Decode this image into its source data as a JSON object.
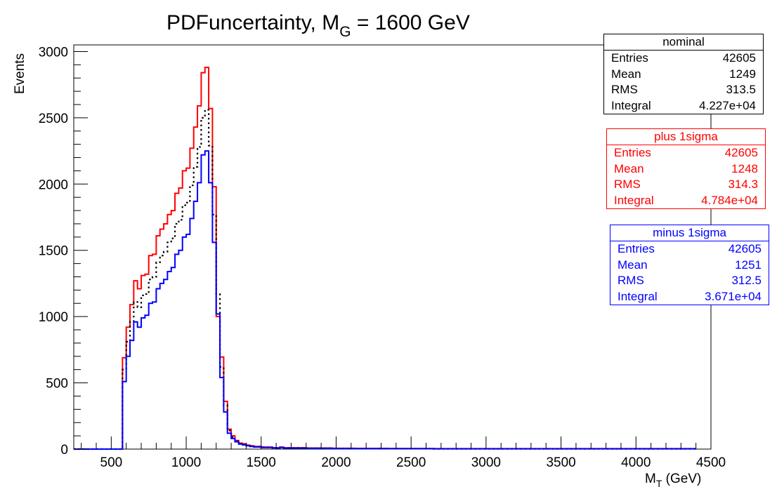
{
  "chart_data": {
    "type": "line",
    "title_main": "PDFuncertainty, M",
    "title_sub": "G",
    "title_tail": " = 1600 GeV",
    "xlabel_main": "M",
    "xlabel_sub": "T",
    "xlabel_tail": " (GeV)",
    "ylabel": "Events",
    "xlim": [
      250,
      4500
    ],
    "ylim": [
      0,
      3050
    ],
    "x_ticks": [
      "500",
      "1000",
      "1500",
      "2000",
      "2500",
      "3000",
      "3500",
      "4000",
      "4500"
    ],
    "y_ticks": [
      "0",
      "500",
      "1000",
      "1500",
      "2000",
      "2500",
      "3000"
    ],
    "bin_edges_start": 250,
    "bin_width": 25,
    "series": [
      {
        "name": "plus 1sigma",
        "color": "#ff0000",
        "style": "solid",
        "values": [
          0,
          0,
          0,
          0,
          0,
          0,
          0,
          0,
          0,
          0,
          0,
          0,
          0,
          690,
          920,
          1090,
          1270,
          1210,
          1310,
          1320,
          1460,
          1470,
          1610,
          1660,
          1700,
          1770,
          1800,
          1930,
          1970,
          2100,
          2120,
          2270,
          2430,
          2590,
          2840,
          2880,
          2570,
          1980,
          1000,
          695,
          360,
          150,
          100,
          65,
          45,
          40,
          30,
          25,
          20,
          20,
          15,
          15,
          15,
          10,
          10,
          15,
          10,
          10,
          10,
          10,
          10,
          10,
          8,
          8,
          8,
          8,
          8,
          8,
          8,
          6,
          6,
          6,
          6,
          6,
          6,
          5,
          5,
          5,
          5,
          5,
          5,
          5,
          5,
          5,
          4,
          4,
          4,
          4,
          4,
          4,
          4,
          4,
          4,
          4,
          4,
          4,
          3,
          3,
          3,
          3,
          3,
          3,
          3,
          3,
          3,
          3,
          3,
          3,
          3,
          3,
          3,
          3,
          3,
          3,
          3,
          3,
          3,
          3,
          3,
          3,
          3,
          3,
          3,
          3,
          3,
          3,
          3,
          3,
          3,
          3,
          3,
          3,
          3,
          3,
          3,
          3,
          3,
          3,
          3,
          3,
          3,
          3,
          3,
          3,
          3,
          3,
          3,
          3,
          3,
          3,
          3,
          3,
          3,
          3,
          3,
          3,
          3,
          3,
          3,
          3,
          3,
          3,
          3,
          3,
          3,
          3
        ]
      },
      {
        "name": "nominal",
        "color": "#000000",
        "style": "dotted",
        "values": [
          0,
          0,
          0,
          0,
          0,
          0,
          0,
          0,
          0,
          0,
          0,
          0,
          0,
          600,
          810,
          960,
          1110,
          1070,
          1160,
          1170,
          1280,
          1300,
          1410,
          1460,
          1490,
          1560,
          1590,
          1700,
          1730,
          1840,
          1860,
          1990,
          2130,
          2280,
          2500,
          2560,
          2290,
          1770,
          1170,
          620,
          330,
          140,
          90,
          60,
          42,
          35,
          28,
          22,
          18,
          18,
          14,
          13,
          13,
          10,
          9,
          13,
          9,
          9,
          9,
          9,
          9,
          9,
          7,
          7,
          7,
          7,
          7,
          7,
          7,
          5,
          5,
          5,
          5,
          5,
          5,
          4,
          4,
          4,
          4,
          4,
          4,
          4,
          4,
          4,
          3,
          3,
          3,
          3,
          3,
          3,
          3,
          3,
          3,
          3,
          3,
          3,
          2,
          2,
          2,
          2,
          2,
          2,
          2,
          2,
          2,
          2,
          2,
          2,
          2,
          2,
          2,
          2,
          2,
          2,
          2,
          2,
          2,
          2,
          2,
          2,
          2,
          2,
          2,
          2,
          2,
          2,
          2,
          2,
          2,
          2,
          2,
          2,
          2,
          2,
          2,
          2,
          2,
          2,
          2,
          2,
          2,
          2,
          2,
          2,
          2,
          2,
          2,
          2,
          2,
          2,
          2,
          2,
          2,
          2,
          2,
          2,
          2,
          2,
          2,
          2,
          2,
          2,
          2,
          2,
          2,
          2
        ]
      },
      {
        "name": "minus 1sigma",
        "color": "#0000ff",
        "style": "solid",
        "values": [
          0,
          0,
          0,
          0,
          0,
          0,
          0,
          0,
          0,
          0,
          0,
          0,
          0,
          510,
          700,
          820,
          960,
          920,
          990,
          1010,
          1100,
          1110,
          1210,
          1250,
          1280,
          1340,
          1370,
          1470,
          1500,
          1600,
          1620,
          1740,
          1870,
          2010,
          2220,
          2250,
          2010,
          1560,
          1020,
          540,
          280,
          120,
          80,
          55,
          38,
          32,
          25,
          20,
          16,
          16,
          12,
          12,
          12,
          9,
          8,
          12,
          8,
          8,
          8,
          8,
          8,
          8,
          6,
          6,
          6,
          6,
          6,
          6,
          6,
          4,
          4,
          4,
          4,
          4,
          4,
          3,
          3,
          3,
          3,
          3,
          3,
          3,
          3,
          3,
          3,
          3,
          3,
          3,
          3,
          3,
          3,
          3,
          3,
          3,
          3,
          3,
          2,
          2,
          2,
          2,
          2,
          2,
          2,
          2,
          2,
          2,
          2,
          2,
          2,
          2,
          2,
          2,
          2,
          2,
          2,
          2,
          2,
          2,
          2,
          2,
          2,
          2,
          2,
          2,
          2,
          2,
          2,
          2,
          2,
          2,
          2,
          2,
          2,
          2,
          2,
          2,
          2,
          2,
          2,
          2,
          2,
          2,
          2,
          2,
          2,
          2,
          2,
          2,
          2,
          2,
          2,
          2,
          2,
          2,
          2,
          2,
          2,
          2,
          2,
          2,
          2,
          2,
          2,
          2,
          2,
          2
        ]
      }
    ]
  },
  "stat_boxes": [
    {
      "title": "nominal",
      "color": "#000000",
      "rows": [
        {
          "label": "Entries",
          "value": "42605"
        },
        {
          "label": "Mean",
          "value": "1249"
        },
        {
          "label": "RMS",
          "value": "313.5"
        },
        {
          "label": "Integral",
          "value": "4.227e+04"
        }
      ]
    },
    {
      "title": "plus 1sigma",
      "color": "#ff0000",
      "rows": [
        {
          "label": "Entries",
          "value": "42605"
        },
        {
          "label": "Mean",
          "value": "1248"
        },
        {
          "label": "RMS",
          "value": "314.3"
        },
        {
          "label": "Integral",
          "value": "4.784e+04"
        }
      ]
    },
    {
      "title": "minus 1sigma",
      "color": "#0000ff",
      "rows": [
        {
          "label": "Entries",
          "value": "42605"
        },
        {
          "label": "Mean",
          "value": "1251"
        },
        {
          "label": "RMS",
          "value": "312.5"
        },
        {
          "label": "Integral",
          "value": "3.671e+04"
        }
      ]
    }
  ]
}
